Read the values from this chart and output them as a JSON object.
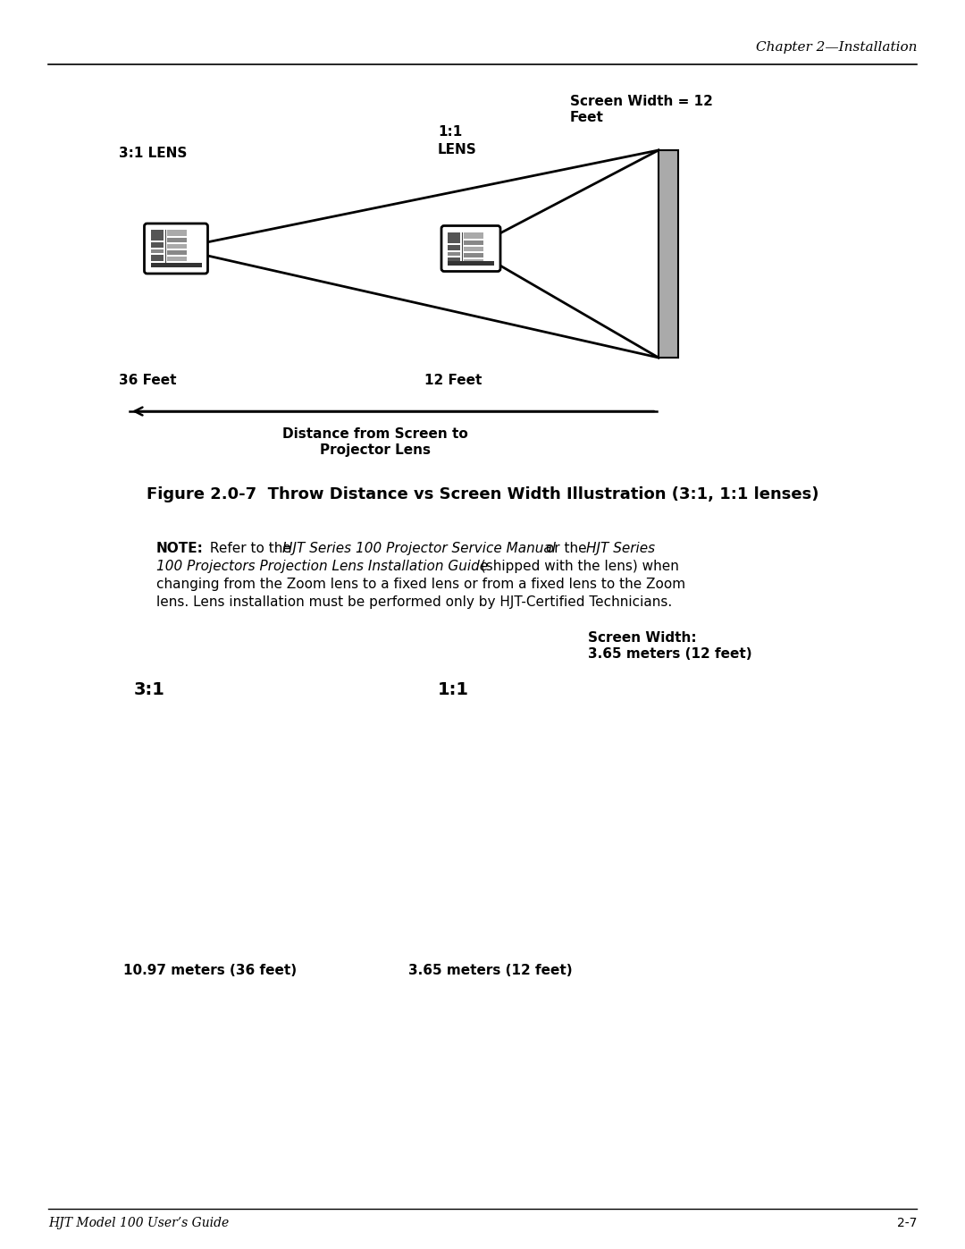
{
  "page_header": "Chapter 2—Installation",
  "screen_width_label_line1": "Screen Width = 12",
  "screen_width_label_line2": "Feet",
  "lens_31_label": "3:1 LENS",
  "lens_11_line1": "1:1",
  "lens_11_line2": "LENS",
  "feet_36_label": "36 Feet",
  "feet_12_label": "12 Feet",
  "arrow_label_line1": "Distance from Screen to",
  "arrow_label_line2": "Projector Lens",
  "figure_caption": "Figure 2.0-7  Throw Distance vs Screen Width Illustration (3:1, 1:1 lenses)",
  "note_bold": "NOTE:",
  "note_normal1": " Refer to the ",
  "note_italic1": "HJT Series 100 Projector Service Manual",
  "note_normal2": " or the ",
  "note_italic2": "HJT Series",
  "note_line2_italic": "100 Projectors Projection Lens Installation Guide",
  "note_line2_normal": " (shipped with the lens) when",
  "note_line3": "changing from the Zoom lens to a fixed lens or from a fixed lens to the Zoom",
  "note_line4": "lens. Lens installation must be performed only by HJT-Certified Technicians.",
  "screen_width2_line1": "Screen Width:",
  "screen_width2_line2": "3.65 meters (12 feet)",
  "label_31": "3:1",
  "label_11": "1:1",
  "distance_31": "10.97 meters (36 feet)",
  "distance_11": "3.65 meters (12 feet)",
  "footer_left": "HJT Model 100 User’s Guide",
  "footer_right": "2-7",
  "bg_color": "#ffffff",
  "text_color": "#000000",
  "screen_fill": "#aaaaaa",
  "proj_fill": "#d8d8d8",
  "proj_detail_dark": "#555555",
  "proj_detail_mid": "#888888"
}
